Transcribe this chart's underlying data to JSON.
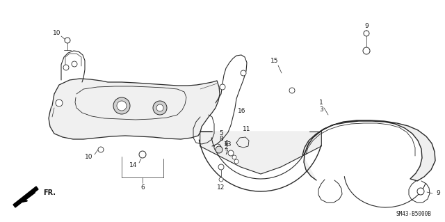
{
  "bg_color": "#ffffff",
  "fig_width": 6.4,
  "fig_height": 3.19,
  "dpi": 100,
  "title_code": "SM43-B5000B",
  "fr_label": "FR.",
  "label_fontsize": 6.5,
  "code_fontsize": 5.5,
  "fr_fontsize": 7,
  "line_color": "#2a2a2a",
  "text_color": "#1a1a1a"
}
